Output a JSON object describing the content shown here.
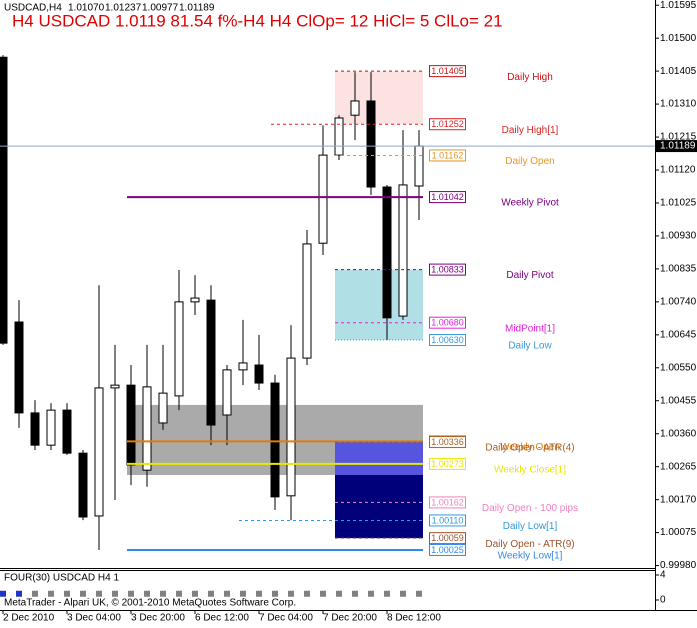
{
  "chart_data": {
    "type": "candlestick",
    "symbol": "USDCAD,H4",
    "quote": [
      "1.01070",
      "1.01237",
      "1.00977",
      "1.01189"
    ],
    "title": "H4 USDCAD 1.0119 81.54 f%-H4 H4 ClOp= 12 HiCl= 5 ClLo= 21",
    "title_color": "#e00000",
    "categories": [
      "2 Dec 2010",
      null,
      null,
      null,
      "3 Dec 04:00",
      null,
      null,
      null,
      "3 Dec 20:00",
      null,
      null,
      null,
      "6 Dec 12:00",
      null,
      null,
      null,
      "7 Dec 04:00",
      null,
      null,
      null,
      "7 Dec 20:00",
      null,
      null,
      null,
      "8 Dec 12:00",
      null,
      null
    ],
    "open": [
      1.01445,
      1.00682,
      1.0042,
      1.00327,
      1.00428,
      1.00304,
      1.00123,
      1.00492,
      1.005,
      1.00255,
      1.00391,
      1.00469,
      1.0074,
      1.00745,
      1.00414,
      1.00544,
      1.00558,
      1.00506,
      1.00181,
      1.00578,
      1.00909,
      1.01163,
      1.01278,
      1.01319,
      1.01071,
      1.00699,
      1.01074
    ],
    "high": [
      1.01451,
      1.00745,
      1.00457,
      1.00448,
      1.00448,
      1.00313,
      1.00788,
      1.00616,
      1.00558,
      1.00616,
      1.00616,
      1.00832,
      1.00817,
      1.00788,
      1.00558,
      1.00688,
      1.00645,
      1.0053,
      1.00673,
      1.00947,
      1.01249,
      1.01278,
      1.01402,
      1.01402,
      1.01077,
      1.01235,
      1.01235
    ],
    "low": [
      1.00616,
      1.00377,
      1.00313,
      1.00313,
      1.00299,
      1.00111,
      1.00025,
      1.00169,
      1.00212,
      1.00207,
      1.00371,
      1.00428,
      1.00702,
      1.00327,
      1.00327,
      1.005,
      1.00486,
      1.0014,
      1.00111,
      1.00558,
      1.00875,
      1.01149,
      1.01206,
      1.01048,
      1.0063,
      1.00688,
      1.00976
    ],
    "close": [
      1.00621,
      1.0042,
      1.00327,
      1.00428,
      1.00304,
      1.0012,
      1.00492,
      1.005,
      1.0027,
      1.00495,
      1.00477,
      1.0074,
      1.00751,
      1.00385,
      1.00544,
      1.00564,
      1.00506,
      1.00178,
      1.00578,
      1.00907,
      1.01163,
      1.0127,
      1.01319,
      1.01071,
      1.00694,
      1.01077,
      1.01189
    ],
    "up_color": "#ffffff",
    "down_color": "#000000",
    "ylim": [
      0.99973,
      1.0161
    ],
    "yticks": [
      1.01595,
      {
        "value": 1.015,
        "label": "1.01500"
      },
      1.01405,
      {
        "value": 1.0131,
        "label": "1.01310"
      },
      1.01215,
      {
        "value": 1.0112,
        "label": "1.01120"
      },
      1.01025,
      {
        "value": 1.0093,
        "label": "1.00930"
      },
      1.00835,
      {
        "value": 1.0074,
        "label": "1.00740"
      },
      1.00645,
      {
        "value": 1.0055,
        "label": "1.00550"
      },
      1.00455,
      {
        "value": 1.0036,
        "label": "1.00360"
      },
      1.00265,
      {
        "value": 1.0017,
        "label": "1.00170"
      },
      1.00075,
      {
        "value": 0.9998,
        "label": "0.99980"
      }
    ],
    "current_price": 1.01189,
    "zones": [
      {
        "from": 1.00443,
        "to": 1.00241,
        "start": 8,
        "color": "#aaaaaa"
      },
      {
        "from": 1.01405,
        "to": 1.01252,
        "start": 21,
        "color": "#fde2e2"
      },
      {
        "from": 1.00833,
        "to": 1.0063,
        "start": 21,
        "color": "#b0e0e6"
      },
      {
        "from": 1.00338,
        "to": 1.00241,
        "start": 21,
        "color": "#5555dd"
      },
      {
        "from": 1.00241,
        "to": 1.00059,
        "start": 21,
        "color": "#00007a"
      }
    ],
    "levels": [
      {
        "name": "Daily High",
        "value": 1.01405,
        "color": "#cc1111",
        "style": "dashed",
        "start": 21
      },
      {
        "name": "Daily High[1]",
        "value": 1.01252,
        "color": "#dd2222",
        "style": "dashed",
        "start": 17
      },
      {
        "name": "Daily Open",
        "value": 1.01162,
        "color": "#e8962a",
        "style": "dashed",
        "start": 21
      },
      {
        "name": "Weekly Pivot",
        "value": 1.01042,
        "color": "#800080",
        "style": "solid",
        "start": 8
      },
      {
        "name": "Daily Pivot",
        "value": 1.00833,
        "color": "#800080",
        "style": "dashed",
        "start": 21
      },
      {
        "name": "MidPoint[1]",
        "value": 1.0068,
        "value_label": "1.00680",
        "color": "#e020e0",
        "style": "dashed",
        "start": 21
      },
      {
        "name": "Daily Low",
        "value": 1.0063,
        "value_label": "1.00630",
        "color": "#3a9ad9",
        "style": "dotted",
        "start": 21
      },
      {
        "name": "Weekly Open",
        "value": 1.00338,
        "color": "#e07a10",
        "style": "solid",
        "start": 8
      },
      {
        "name": "Daily Open - ATR(4)",
        "value": 1.00336,
        "color": "#b06020",
        "style": "dashed",
        "start": 21
      },
      {
        "name": "Weekly Close[1]",
        "value": 1.00273,
        "color": "#e8e800",
        "style": "solid",
        "start": 8
      },
      {
        "name": "Daily Open - 100 pips",
        "value": 1.00162,
        "color": "#f080c0",
        "style": "dashed",
        "start": 21
      },
      {
        "name": "Daily Low[1]",
        "value": 1.0011,
        "value_label": "1.00110",
        "color": "#3399dd",
        "style": "dashed",
        "start": 15
      },
      {
        "name": "Daily Open - ATR(9)",
        "value": 1.00059,
        "color": "#a0522d",
        "style": "dashed",
        "start": 21
      },
      {
        "name": "Weekly Low[1]",
        "value": 1.00025,
        "color": "#3388ee",
        "style": "solid",
        "start": 8
      }
    ],
    "indicator": {
      "label": "FOUR(30) USDCAD H4 1",
      "ylim": [
        -1.6,
        4.8
      ],
      "yticks": [
        4,
        0
      ],
      "values": [
        1,
        1,
        1,
        1,
        1,
        1,
        1,
        1,
        1,
        1,
        1,
        1,
        1,
        1,
        1,
        1,
        1,
        1,
        1,
        1,
        1,
        1,
        1,
        1,
        1,
        1,
        1
      ],
      "colors": [
        "#2233cc",
        "#2233cc",
        "#808080",
        "#808080",
        "#808080",
        "#808080",
        "#808080",
        "#808080",
        "#808080",
        "#808080",
        "#808080",
        "#808080",
        "#808080",
        "#808080",
        "#808080",
        "#808080",
        "#808080",
        "#808080",
        "#808080",
        "#808080",
        "#808080",
        "#808080",
        "#808080",
        "#808080",
        "#808080",
        "#808080",
        "#808080"
      ]
    },
    "copyright": "MetaTrader - Alpari UK, © 2001-2010 MetaQuotes Software Corp."
  }
}
